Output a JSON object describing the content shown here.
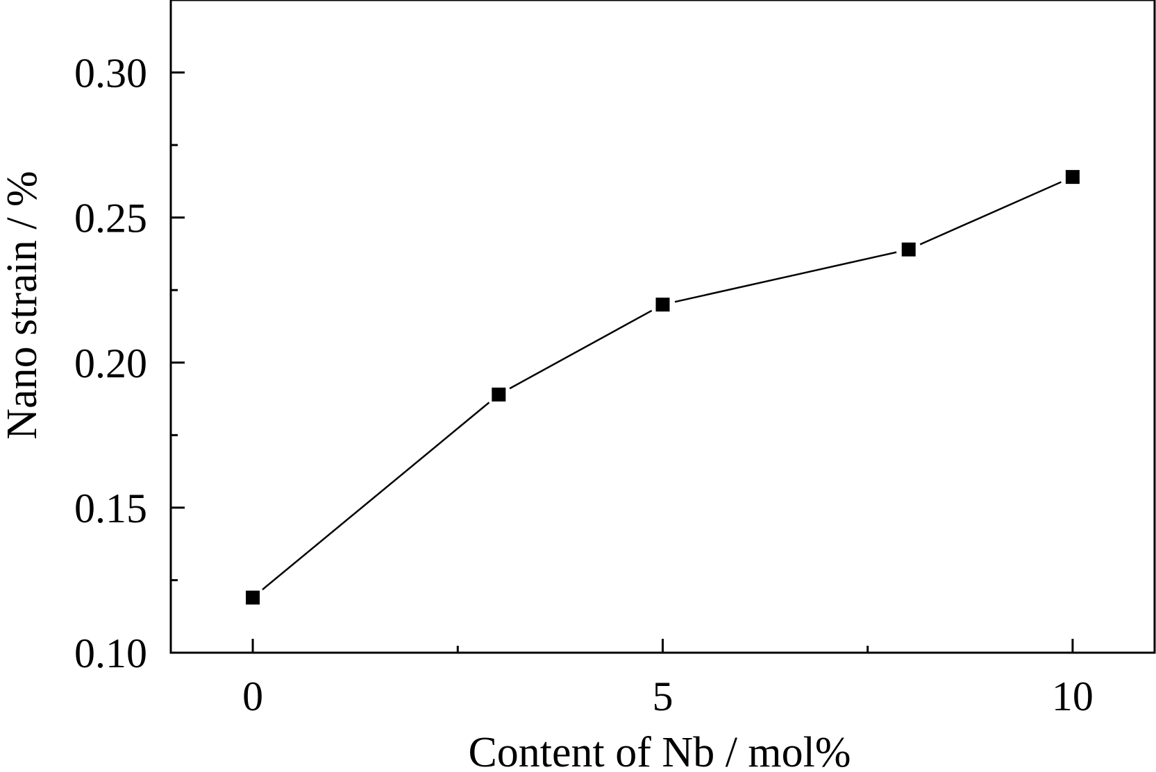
{
  "chart_data": {
    "type": "line",
    "title": "",
    "xlabel": "Content of Nb / mol%",
    "ylabel": "Nano strain / %",
    "xlim": [
      -1,
      11
    ],
    "ylim": [
      0.1,
      0.325
    ],
    "x_ticks": [
      {
        "value": 0,
        "label": "0"
      },
      {
        "value": 5,
        "label": "5"
      },
      {
        "value": 10,
        "label": "10"
      }
    ],
    "x_minor_ticks": [
      2.5,
      7.5
    ],
    "y_ticks": [
      {
        "value": 0.1,
        "label": "0.10"
      },
      {
        "value": 0.15,
        "label": "0.15"
      },
      {
        "value": 0.2,
        "label": "0.20"
      },
      {
        "value": 0.25,
        "label": "0.25"
      },
      {
        "value": 0.3,
        "label": "0.30"
      }
    ],
    "y_minor_ticks": [
      0.125,
      0.175,
      0.225,
      0.275
    ],
    "grid": false,
    "series": [
      {
        "marker": "square",
        "color": "#000000",
        "x": [
          0,
          3,
          5,
          8,
          10
        ],
        "y": [
          0.119,
          0.189,
          0.22,
          0.239,
          0.264
        ]
      }
    ]
  }
}
